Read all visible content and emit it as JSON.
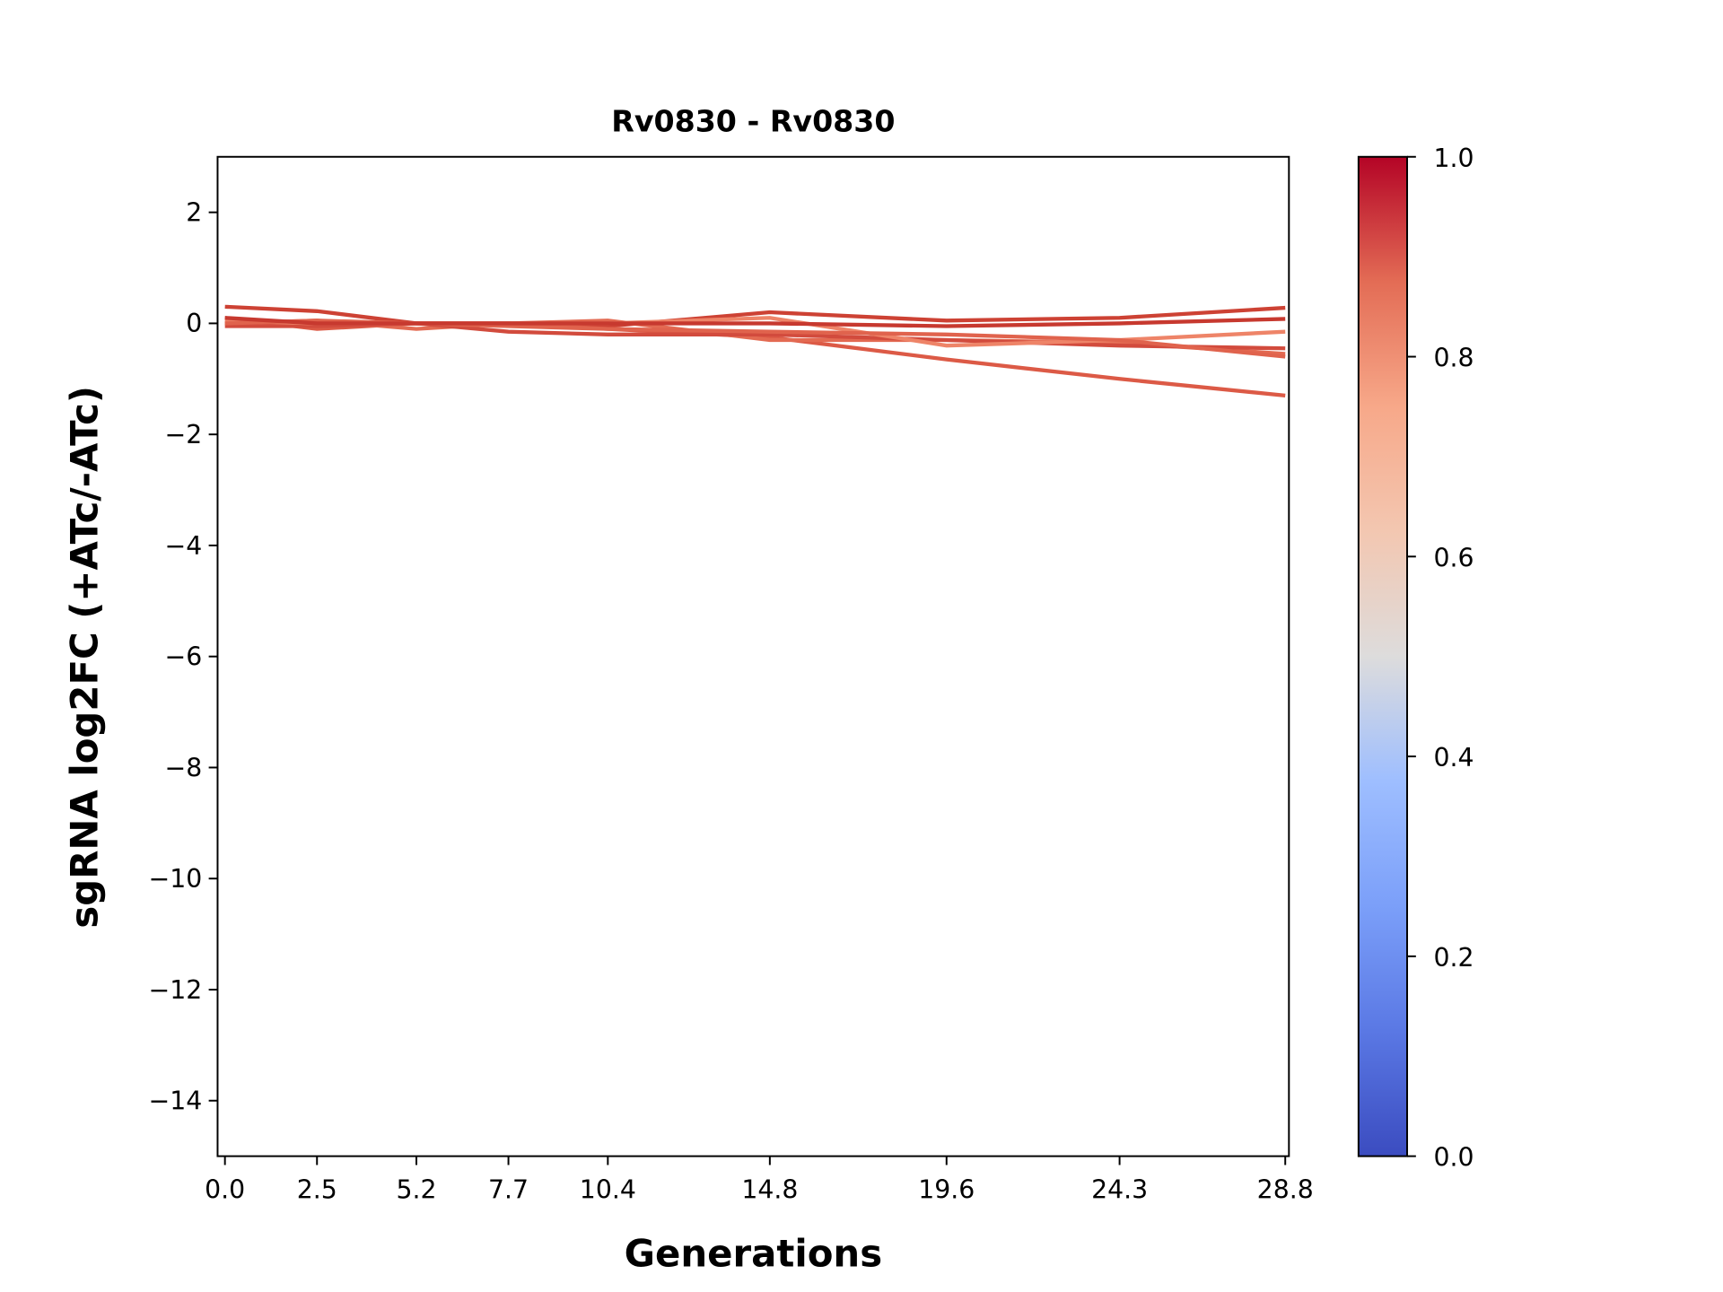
{
  "chart_data": {
    "type": "line",
    "title": "Rv0830 - Rv0830",
    "xlabel": "Generations",
    "ylabel": "sgRNA log2FC (+ATc/-ATc)",
    "x": [
      0.0,
      2.5,
      5.2,
      7.7,
      10.4,
      14.8,
      19.6,
      24.3,
      28.8
    ],
    "xtick_labels": [
      "0.0",
      "2.5",
      "5.2",
      "7.7",
      "10.4",
      "14.8",
      "19.6",
      "24.3",
      "28.8"
    ],
    "ylim": [
      -15,
      3
    ],
    "xlim": [
      -0.2,
      28.9
    ],
    "yticks": [
      2,
      0,
      -2,
      -4,
      -6,
      -8,
      -10,
      -12,
      -14
    ],
    "ytick_labels": [
      "2",
      "0",
      "−2",
      "−4",
      "−6",
      "−8",
      "−10",
      "−12",
      "−14"
    ],
    "grid": false,
    "series": [
      {
        "values": [
          0.3,
          0.22,
          0.0,
          0.0,
          -0.05,
          0.2,
          0.05,
          0.1,
          0.28
        ],
        "colorValue": 0.93,
        "color": "#cd4234"
      },
      {
        "values": [
          0.1,
          -0.1,
          0.0,
          0.0,
          -0.1,
          -0.25,
          -0.65,
          -1.0,
          -1.3
        ],
        "colorValue": 0.88,
        "color": "#dc5a46"
      },
      {
        "values": [
          0.0,
          0.05,
          -0.1,
          0.0,
          0.05,
          -0.3,
          -0.3,
          -0.35,
          -0.55
        ],
        "colorValue": 0.85,
        "color": "#e36a52"
      },
      {
        "values": [
          -0.05,
          -0.05,
          0.0,
          -0.15,
          -0.2,
          -0.2,
          -0.3,
          -0.4,
          -0.45
        ],
        "colorValue": 0.92,
        "color": "#d24b3d"
      },
      {
        "values": [
          0.05,
          0.0,
          0.0,
          0.0,
          0.0,
          0.1,
          -0.4,
          -0.3,
          -0.15
        ],
        "colorValue": 0.8,
        "color": "#ee8468"
      },
      {
        "values": [
          0.0,
          0.05,
          0.0,
          -0.05,
          -0.1,
          -0.15,
          -0.2,
          -0.3,
          -0.6
        ],
        "colorValue": 0.86,
        "color": "#e0634d"
      },
      {
        "values": [
          0.1,
          0.0,
          0.0,
          0.0,
          0.0,
          0.0,
          -0.05,
          0.0,
          0.08
        ],
        "colorValue": 0.95,
        "color": "#c7392f"
      }
    ],
    "colorbar": {
      "colormap": "coolwarm",
      "range": [
        0.0,
        1.0
      ],
      "ticks": [
        0.0,
        0.2,
        0.4,
        0.6,
        0.8,
        1.0
      ],
      "tick_labels": [
        "0.0",
        "0.2",
        "0.4",
        "0.6",
        "0.8",
        "1.0"
      ]
    }
  }
}
